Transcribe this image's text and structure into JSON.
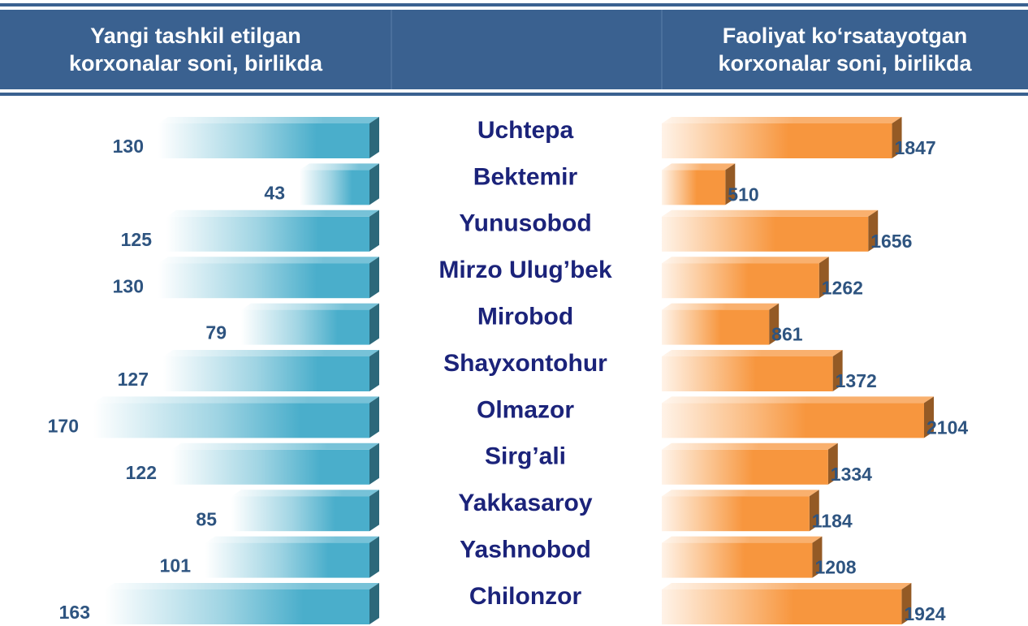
{
  "chart_data": {
    "type": "butterfly",
    "categories": [
      "Uchtepa",
      "Bektemir",
      "Yunusobod",
      "Mirzo Ulug’bek",
      "Mirobod",
      "Shayxontohur",
      "Olmazor",
      "Sirg’ali",
      "Yakkasaroy",
      "Yashnobod",
      "Chilonzor"
    ],
    "series": [
      {
        "name": "Yangi tashkil etilgan korxonalar soni, birlikda",
        "color": "#4aaecb",
        "values": [
          130,
          43,
          125,
          130,
          79,
          127,
          170,
          122,
          85,
          101,
          163
        ]
      },
      {
        "name": "Faoliyat ko‘rsatayotgan korxonalar soni, birlikda",
        "color": "#f7963e",
        "values": [
          1847,
          510,
          1656,
          1262,
          861,
          1372,
          2104,
          1334,
          1184,
          1208,
          1924
        ]
      }
    ]
  }
}
